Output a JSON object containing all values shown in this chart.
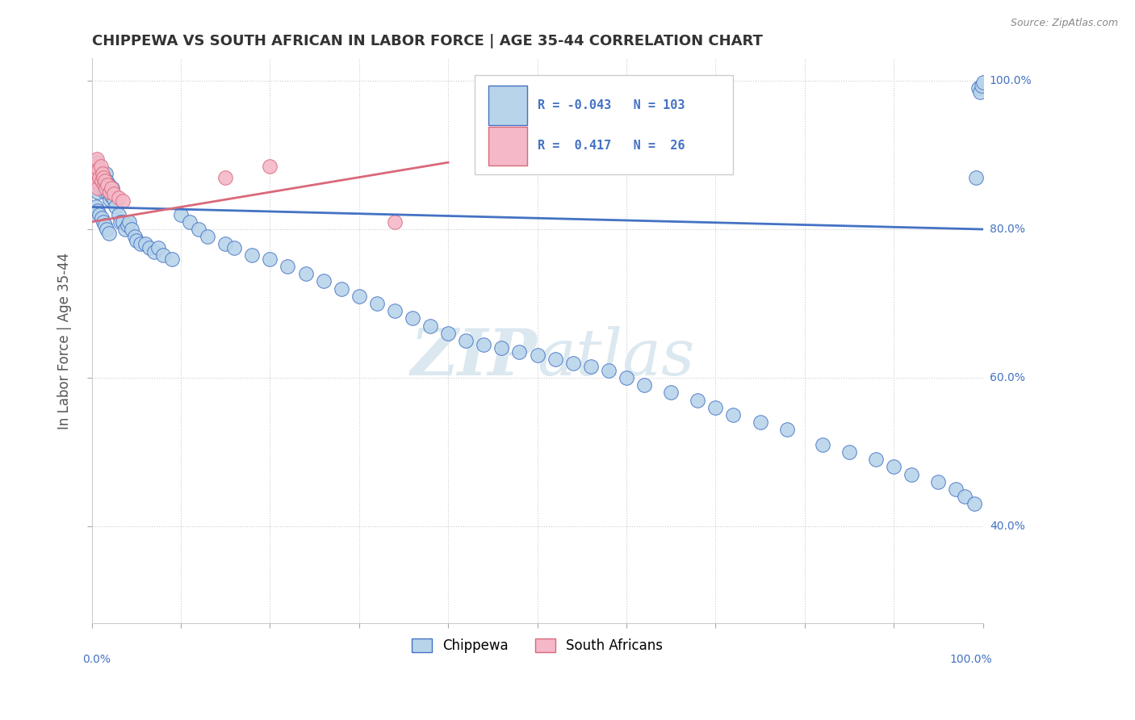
{
  "title": "CHIPPEWA VS SOUTH AFRICAN IN LABOR FORCE | AGE 35-44 CORRELATION CHART",
  "source": "Source: ZipAtlas.com",
  "ylabel": "In Labor Force | Age 35-44",
  "legend_label1": "Chippewa",
  "legend_label2": "South Africans",
  "r1": -0.043,
  "n1": 103,
  "r2": 0.417,
  "n2": 26,
  "watermark": "ZIPatlas",
  "color_blue": "#b8d4ea",
  "color_pink": "#f4b8c8",
  "color_blue_line": "#4472c4",
  "color_pink_line": "#d9697a",
  "background": "#ffffff",
  "grid_color": "#cccccc",
  "ymin": 0.27,
  "ymax": 1.03,
  "xmin": 0.0,
  "xmax": 1.0,
  "chip_x": [
    0.003,
    0.004,
    0.005,
    0.005,
    0.006,
    0.006,
    0.007,
    0.007,
    0.008,
    0.008,
    0.009,
    0.009,
    0.01,
    0.01,
    0.011,
    0.012,
    0.013,
    0.014,
    0.015,
    0.016,
    0.016,
    0.017,
    0.018,
    0.019,
    0.02,
    0.021,
    0.022,
    0.023,
    0.025,
    0.027,
    0.03,
    0.032,
    0.035,
    0.038,
    0.04,
    0.042,
    0.045,
    0.048,
    0.05,
    0.055,
    0.06,
    0.065,
    0.07,
    0.075,
    0.08,
    0.09,
    0.1,
    0.11,
    0.12,
    0.13,
    0.15,
    0.16,
    0.18,
    0.2,
    0.22,
    0.24,
    0.26,
    0.28,
    0.3,
    0.32,
    0.34,
    0.36,
    0.38,
    0.4,
    0.42,
    0.44,
    0.46,
    0.48,
    0.5,
    0.52,
    0.54,
    0.56,
    0.58,
    0.6,
    0.62,
    0.65,
    0.68,
    0.7,
    0.72,
    0.75,
    0.78,
    0.82,
    0.85,
    0.88,
    0.9,
    0.92,
    0.95,
    0.97,
    0.98,
    0.99,
    0.992,
    0.995,
    0.997,
    0.999,
    1.0,
    0.005,
    0.007,
    0.009,
    0.011,
    0.013,
    0.015,
    0.017,
    0.019
  ],
  "chip_y": [
    0.87,
    0.875,
    0.88,
    0.86,
    0.87,
    0.89,
    0.87,
    0.85,
    0.875,
    0.865,
    0.88,
    0.86,
    0.875,
    0.855,
    0.865,
    0.87,
    0.855,
    0.86,
    0.85,
    0.855,
    0.875,
    0.865,
    0.85,
    0.86,
    0.84,
    0.85,
    0.845,
    0.855,
    0.84,
    0.83,
    0.82,
    0.81,
    0.81,
    0.8,
    0.805,
    0.81,
    0.8,
    0.79,
    0.785,
    0.78,
    0.78,
    0.775,
    0.77,
    0.775,
    0.765,
    0.76,
    0.82,
    0.81,
    0.8,
    0.79,
    0.78,
    0.775,
    0.765,
    0.76,
    0.75,
    0.74,
    0.73,
    0.72,
    0.71,
    0.7,
    0.69,
    0.68,
    0.67,
    0.66,
    0.65,
    0.645,
    0.64,
    0.635,
    0.63,
    0.625,
    0.62,
    0.615,
    0.61,
    0.6,
    0.59,
    0.58,
    0.57,
    0.56,
    0.55,
    0.54,
    0.53,
    0.51,
    0.5,
    0.49,
    0.48,
    0.47,
    0.46,
    0.45,
    0.44,
    0.43,
    0.87,
    0.99,
    0.985,
    0.993,
    0.998,
    0.83,
    0.825,
    0.82,
    0.815,
    0.81,
    0.805,
    0.8,
    0.795
  ],
  "sa_x": [
    0.003,
    0.004,
    0.005,
    0.005,
    0.006,
    0.006,
    0.007,
    0.007,
    0.008,
    0.009,
    0.01,
    0.011,
    0.012,
    0.013,
    0.014,
    0.015,
    0.016,
    0.018,
    0.02,
    0.022,
    0.025,
    0.03,
    0.035,
    0.15,
    0.2,
    0.34
  ],
  "sa_y": [
    0.88,
    0.87,
    0.885,
    0.865,
    0.875,
    0.895,
    0.875,
    0.855,
    0.88,
    0.87,
    0.885,
    0.865,
    0.875,
    0.87,
    0.86,
    0.865,
    0.855,
    0.86,
    0.85,
    0.855,
    0.848,
    0.842,
    0.838,
    0.87,
    0.885,
    0.81
  ],
  "blue_trend_x0": 0.0,
  "blue_trend_x1": 1.0,
  "blue_trend_y0": 0.83,
  "blue_trend_y1": 0.8,
  "pink_trend_x0": 0.0,
  "pink_trend_x1": 0.4,
  "pink_trend_y0": 0.81,
  "pink_trend_y1": 0.89
}
